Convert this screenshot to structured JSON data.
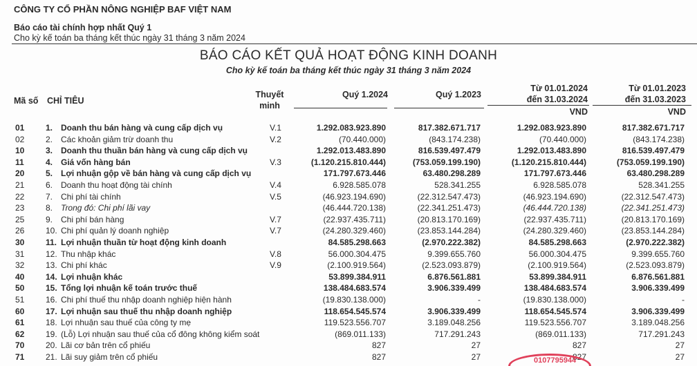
{
  "header": {
    "company": "CÔNG TY CỔ PHẦN NÔNG NGHIỆP BAF VIỆT NAM",
    "report_title": "Báo cáo tài chính hợp nhất Quý 1",
    "report_period": "Cho kỳ kế toán ba tháng kết thúc ngày 31 tháng 3 năm 2024"
  },
  "statement": {
    "title": "BÁO CÁO KẾT QUẢ HOẠT ĐỘNG KINH DOANH",
    "subtitle": "Cho kỳ kế toán ba tháng kết thúc ngày 31 tháng 3 năm 2024"
  },
  "columns": {
    "code": "Mã số",
    "item": "CHỈ TIÊU",
    "note_line1": "Thuyết",
    "note_line2": "minh",
    "q2024": "Quý 1.2024",
    "q2023": "Quý 1.2023",
    "ytd2024_line1": "Từ 01.01.2024",
    "ytd2024_line2": "đến 31.03.2024",
    "ytd2023_line1": "Từ 01.01.2023",
    "ytd2023_line2": "đến 31.03.2023",
    "currency": "VND"
  },
  "rows": [
    {
      "code": "01",
      "idx": "1.",
      "label": "Doanh thu bán hàng và cung cấp dịch vụ",
      "note": "V.1",
      "v": [
        "1.292.083.923.890",
        "817.382.671.717",
        "1.292.083.923.890",
        "817.382.671.717"
      ],
      "bold": true
    },
    {
      "code": "02",
      "idx": "2.",
      "label": "Các khoản giảm trừ doanh thu",
      "note": "V.2",
      "v": [
        "(70.440.000)",
        "(843.174.238)",
        "(70.440.000)",
        "(843.174.238)"
      ]
    },
    {
      "code": "10",
      "idx": "3.",
      "label": "Doanh thu thuần bán hàng và cung cấp dịch vụ",
      "note": "",
      "v": [
        "1.292.013.483.890",
        "816.539.497.479",
        "1.292.013.483.890",
        "816.539.497.479"
      ],
      "bold": true
    },
    {
      "code": "11",
      "idx": "4.",
      "label": "Giá vốn hàng bán",
      "note": "V.3",
      "v": [
        "(1.120.215.810.444)",
        "(753.059.199.190)",
        "(1.120.215.810.444)",
        "(753.059.199.190)"
      ],
      "bold": true
    },
    {
      "code": "20",
      "idx": "5.",
      "label": "Lợi nhuận gộp về bán hàng và cung cấp dịch vụ",
      "note": "",
      "v": [
        "171.797.673.446",
        "63.480.298.289",
        "171.797.673.446",
        "63.480.298.289"
      ],
      "bold": true
    },
    {
      "code": "21",
      "idx": "6.",
      "label": "Doanh thu hoạt động tài chính",
      "note": "V.4",
      "v": [
        "6.928.585.078",
        "528.341.255",
        "6.928.585.078",
        "528.341.255"
      ]
    },
    {
      "code": "22",
      "idx": "7.",
      "label": "Chi phí tài chính",
      "note": "V.5",
      "v": [
        "(46.923.194.690)",
        "(22.312.547.473)",
        "(46.923.194.690)",
        "(22.312.547.473)"
      ]
    },
    {
      "code": "23",
      "idx": "8.",
      "label": "Trong đó: Chi phí lãi vay",
      "note": "",
      "v": [
        "(46.444.720.138)",
        "(22.341.251.473)",
        "(46.444.720.138)",
        "(22.341.251.473)"
      ],
      "italic": true
    },
    {
      "code": "25",
      "idx": "9.",
      "label": "Chi phí bán hàng",
      "note": "V.7",
      "v": [
        "(22.937.435.711)",
        "(20.813.170.169)",
        "(22.937.435.711)",
        "(20.813.170.169)"
      ]
    },
    {
      "code": "26",
      "idx": "10.",
      "label": "Chi phí quản lý doanh nghiệp",
      "note": "V.7",
      "v": [
        "(24.280.329.460)",
        "(23.853.144.284)",
        "(24.280.329.460)",
        "(23.853.144.284)"
      ]
    },
    {
      "code": "30",
      "idx": "11.",
      "label": "Lợi nhuận thuần từ hoạt động kinh doanh",
      "note": "",
      "v": [
        "84.585.298.663",
        "(2.970.222.382)",
        "84.585.298.663",
        "(2.970.222.382)"
      ],
      "bold": true
    },
    {
      "code": "31",
      "idx": "12.",
      "label": "Thu nhập khác",
      "note": "V.8",
      "v": [
        "56.000.304.475",
        "9.399.655.760",
        "56.000.304.475",
        "9.399.655.760"
      ]
    },
    {
      "code": "32",
      "idx": "13.",
      "label": "Chi phí khác",
      "note": "V.9",
      "v": [
        "(2.100.919.564)",
        "(2.523.093.879)",
        "(2.100.919.564)",
        "(2.523.093.879)"
      ]
    },
    {
      "code": "40",
      "idx": "14.",
      "label": "Lợi nhuận khác",
      "note": "",
      "v": [
        "53.899.384.911",
        "6.876.561.881",
        "53.899.384.911",
        "6.876.561.881"
      ],
      "bold": true
    },
    {
      "code": "50",
      "idx": "15.",
      "label": "Tổng lợi nhuận kế toán trước thuế",
      "note": "",
      "v": [
        "138.484.683.574",
        "3.906.339.499",
        "138.484.683.574",
        "3.906.339.499"
      ],
      "bold": true
    },
    {
      "code": "51",
      "idx": "16.",
      "label": "Chi phí thuế thu nhập doanh nghiệp hiện hành",
      "note": "",
      "v": [
        "(19.830.138.000)",
        "-",
        "(19.830.138.000)",
        "-"
      ]
    },
    {
      "code": "60",
      "idx": "17.",
      "label": "Lợi nhuận sau thuế thu nhập doanh nghiệp",
      "note": "",
      "v": [
        "118.654.545.574",
        "3.906.339.499",
        "118.654.545.574",
        "3.906.339.499"
      ],
      "bold": true
    },
    {
      "code": "61",
      "idx": "18.",
      "label": "Lợi nhuận sau thuế của công ty mẹ",
      "note": "",
      "v": [
        "119.523.556.707",
        "3.189.048.256",
        "119.523.556.707",
        "3.189.048.256"
      ],
      "boldcode": true
    },
    {
      "code": "62",
      "idx": "19.",
      "label": "(Lỗ) Lợi nhuận sau thuế của cổ đông không kiểm soát",
      "note": "",
      "v": [
        "(869.011.133)",
        "717.291.243",
        "(869.011.133)",
        "717.291.243"
      ],
      "boldcode": true
    },
    {
      "code": "70",
      "idx": "20.",
      "label": "Lãi cơ bản trên cổ phiếu",
      "note": "",
      "v": [
        "827",
        "27",
        "827",
        "27"
      ],
      "boldcode": true
    },
    {
      "code": "71",
      "idx": "21.",
      "label": "Lãi suy giảm trên cổ phiếu",
      "note": "",
      "v": [
        "827",
        "27",
        "827",
        "27"
      ],
      "boldcode": true
    }
  ],
  "stamp": {
    "text": "0107795944",
    "color": "#e0405a"
  }
}
